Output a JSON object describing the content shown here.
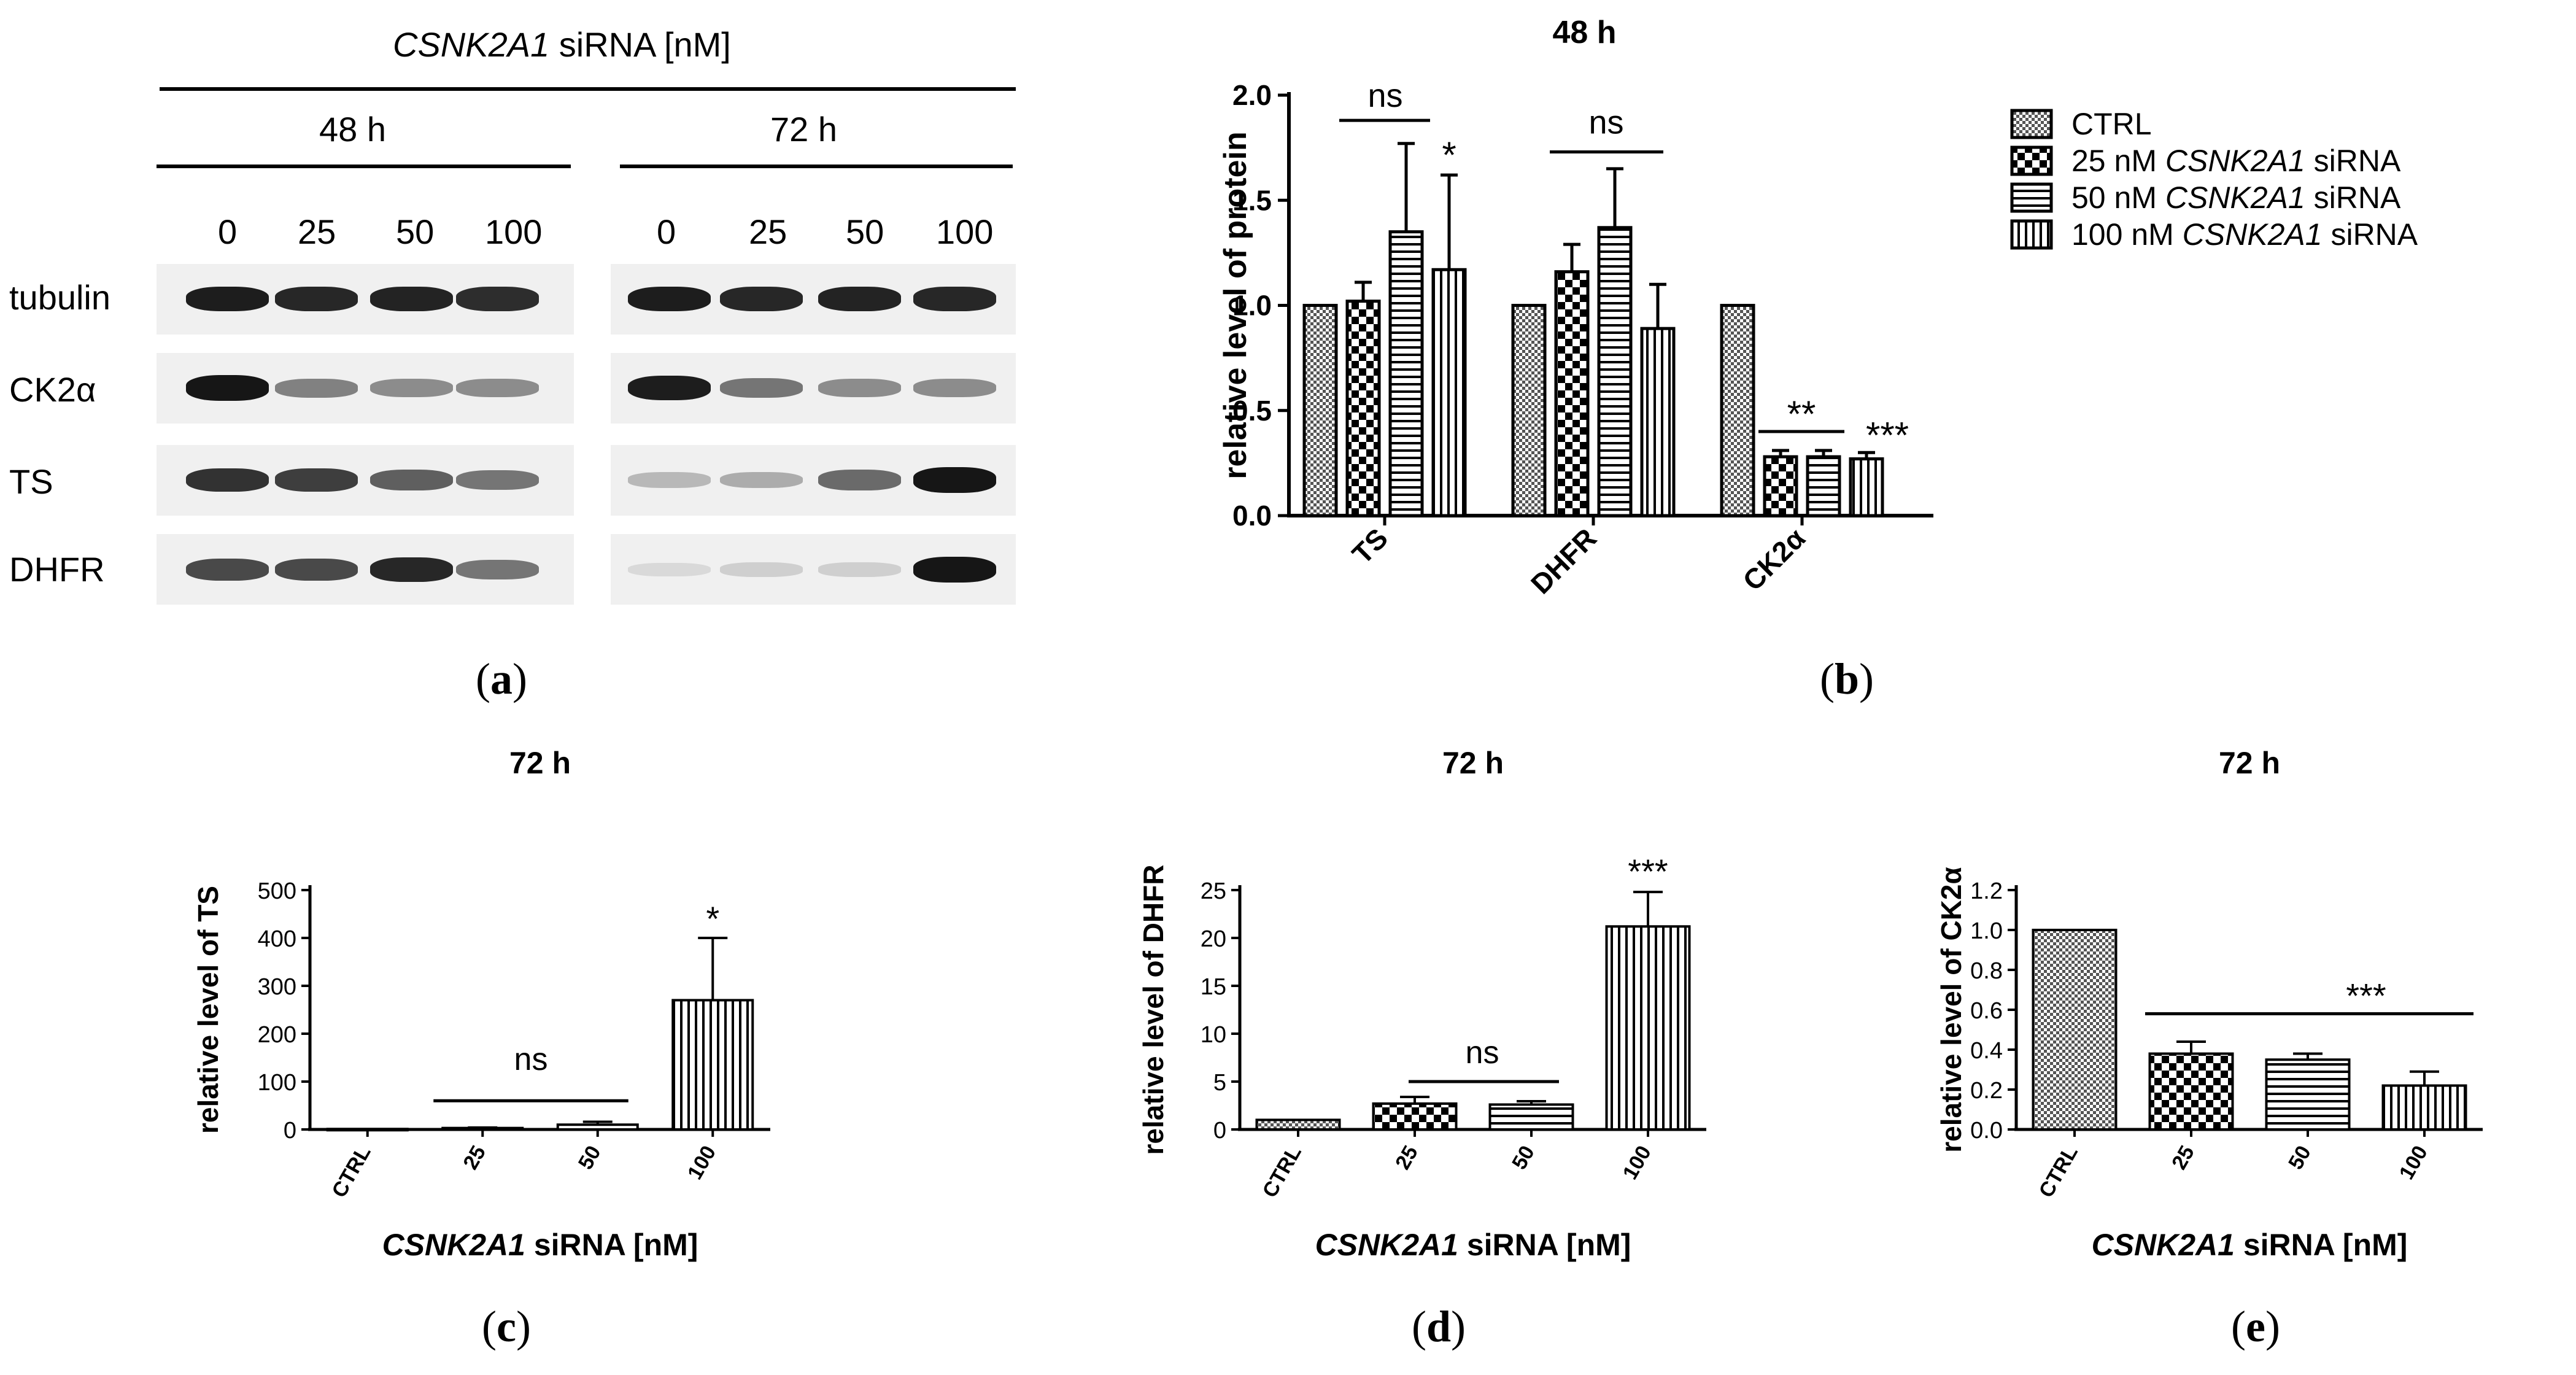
{
  "blot": {
    "header_gene": "CSNK2A1",
    "header_rest": " siRNA [nM]",
    "time_48": "48 h",
    "time_72": "72 h",
    "lanes_48": [
      "0",
      "25",
      "50",
      "100"
    ],
    "lanes_72": [
      "0",
      "25",
      "50",
      "100"
    ],
    "rows": [
      "tubulin",
      "CK2α",
      "TS",
      "DHFR"
    ],
    "band_intensity_48": [
      [
        0.95,
        0.9,
        0.92,
        0.88
      ],
      [
        0.98,
        0.5,
        0.45,
        0.45
      ],
      [
        0.85,
        0.8,
        0.65,
        0.55
      ],
      [
        0.75,
        0.75,
        0.9,
        0.55
      ]
    ],
    "band_intensity_72": [
      [
        0.95,
        0.9,
        0.92,
        0.9
      ],
      [
        0.95,
        0.55,
        0.45,
        0.45
      ],
      [
        0.25,
        0.3,
        0.6,
        0.98
      ],
      [
        0.1,
        0.15,
        0.15,
        0.98
      ]
    ]
  },
  "legend": {
    "items": [
      {
        "prefix": "CTRL",
        "gene": "",
        "suffix": "",
        "pattern": "checker-fine"
      },
      {
        "prefix": "25 nM ",
        "gene": "CSNK2A1",
        "suffix": " siRNA",
        "pattern": "checker-coarse"
      },
      {
        "prefix": "50 nM ",
        "gene": "CSNK2A1",
        "suffix": " siRNA",
        "pattern": "horizontal"
      },
      {
        "prefix": "100 nM ",
        "gene": "CSNK2A1",
        "suffix": " siRNA",
        "pattern": "vertical"
      }
    ]
  },
  "panel_labels": {
    "a": "a",
    "b": "b",
    "c": "c",
    "d": "d",
    "e": "e"
  },
  "chart_data": [
    {
      "panel": "b",
      "type": "bar",
      "title": "48 h",
      "ylabel": "relative level of protein",
      "ylim": [
        0,
        2.0
      ],
      "yticks": [
        "0.0",
        "0.5",
        "1.0",
        "1.5",
        "2.0"
      ],
      "categories": [
        "TS",
        "DHFR",
        "CK2α"
      ],
      "series": [
        {
          "name": "CTRL",
          "pattern": "checker-fine",
          "values": [
            1.0,
            1.0,
            1.0
          ],
          "errors": [
            0,
            0,
            0
          ]
        },
        {
          "name": "25 nM CSNK2A1 siRNA",
          "pattern": "checker-coarse",
          "values": [
            1.02,
            1.16,
            0.28
          ],
          "errors": [
            0.09,
            0.13,
            0.03
          ]
        },
        {
          "name": "50 nM CSNK2A1 siRNA",
          "pattern": "horizontal",
          "values": [
            1.35,
            1.37,
            0.28
          ],
          "errors": [
            0.42,
            0.28,
            0.03
          ]
        },
        {
          "name": "100 nM CSNK2A1 siRNA",
          "pattern": "vertical",
          "values": [
            1.17,
            0.89,
            0.27
          ],
          "errors": [
            0.45,
            0.21,
            0.03
          ]
        }
      ],
      "annotations": [
        "ns",
        "*",
        "ns",
        "**",
        "***"
      ]
    },
    {
      "panel": "c",
      "type": "bar",
      "title": "72 h",
      "ylabel": "relative level of TS",
      "xlabel_gene": "CSNK2A1",
      "xlabel_rest": " siRNA [nM]",
      "ylim": [
        0,
        500
      ],
      "yticks": [
        "0",
        "100",
        "200",
        "300",
        "400",
        "500"
      ],
      "categories": [
        "CTRL",
        "25",
        "50",
        "100"
      ],
      "patterns": [
        "checker-fine",
        "checker-coarse",
        "horizontal",
        "vertical"
      ],
      "values": [
        1,
        3,
        10,
        270
      ],
      "errors": [
        0,
        1,
        6,
        130
      ],
      "annotations": [
        "ns",
        "*"
      ]
    },
    {
      "panel": "d",
      "type": "bar",
      "title": "72 h",
      "ylabel": "relative level of DHFR",
      "xlabel_gene": "CSNK2A1",
      "xlabel_rest": " siRNA [nM]",
      "ylim": [
        0,
        25
      ],
      "yticks": [
        "0",
        "5",
        "10",
        "15",
        "20",
        "25"
      ],
      "categories": [
        "CTRL",
        "25",
        "50",
        "100"
      ],
      "patterns": [
        "checker-fine",
        "checker-coarse",
        "horizontal",
        "vertical"
      ],
      "values": [
        1.0,
        2.7,
        2.6,
        21.2
      ],
      "errors": [
        0,
        0.7,
        0.35,
        3.6
      ],
      "annotations": [
        "ns",
        "***"
      ]
    },
    {
      "panel": "e",
      "type": "bar",
      "title": "72 h",
      "ylabel": "relative level of CK2α",
      "xlabel_gene": "CSNK2A1",
      "xlabel_rest": " siRNA [nM]",
      "ylim": [
        0,
        1.2
      ],
      "yticks": [
        "0.0",
        "0.2",
        "0.4",
        "0.6",
        "0.8",
        "1.0",
        "1.2"
      ],
      "categories": [
        "CTRL",
        "25",
        "50",
        "100"
      ],
      "patterns": [
        "checker-fine",
        "checker-coarse",
        "horizontal",
        "vertical"
      ],
      "values": [
        1.0,
        0.38,
        0.35,
        0.22
      ],
      "errors": [
        0,
        0.06,
        0.03,
        0.07
      ],
      "annotations": [
        "***"
      ]
    }
  ]
}
